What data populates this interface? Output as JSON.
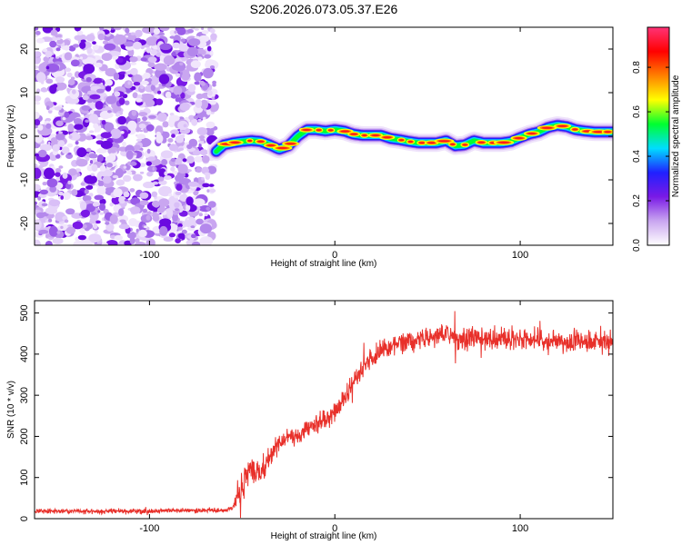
{
  "chart_data": [
    {
      "type": "heatmap",
      "title": "S206.2026.073.05.37.E26",
      "xlabel": "Height of straight line (km)",
      "ylabel": "Frequency (Hz)",
      "xlim": [
        -162,
        150
      ],
      "ylim": [
        -25,
        25
      ],
      "xticks": [
        -100,
        0,
        100
      ],
      "yticks": [
        -20,
        -10,
        0,
        10,
        20
      ],
      "noise_region_xmax": -65,
      "ridge": {
        "x": [
          -64,
          -60,
          -55,
          -50,
          -45,
          -40,
          -35,
          -30,
          -25,
          -20,
          -15,
          -10,
          -5,
          0,
          5,
          10,
          15,
          20,
          25,
          30,
          35,
          40,
          45,
          50,
          55,
          60,
          65,
          70,
          75,
          80,
          85,
          90,
          95,
          100,
          105,
          110,
          115,
          120,
          125,
          130,
          135,
          140,
          145,
          150
        ],
        "y": [
          -3.5,
          -2.0,
          -1.5,
          -1.2,
          -1.0,
          -1.2,
          -2.0,
          -3.0,
          -2.2,
          0.0,
          1.5,
          1.5,
          1.2,
          1.5,
          1.2,
          0.5,
          0.2,
          0.2,
          0.2,
          -0.5,
          -0.8,
          -1.2,
          -1.5,
          -1.5,
          -1.5,
          -1.0,
          -2.2,
          -2.0,
          -1.0,
          -1.5,
          -1.5,
          -1.5,
          -1.2,
          -0.3,
          0.5,
          1.0,
          2.0,
          2.5,
          2.2,
          1.5,
          1.2,
          1.0,
          1.0,
          1.0
        ]
      }
    },
    {
      "type": "line",
      "xlabel": "Height of straight line (km)",
      "ylabel": "SNR (10 * v/v)",
      "xlim": [
        -162,
        150
      ],
      "ylim": [
        0,
        530
      ],
      "xticks": [
        -100,
        0,
        100
      ],
      "yticks": [
        0,
        100,
        200,
        300,
        400,
        500
      ],
      "series": [
        {
          "name": "SNR",
          "color": "#e8302a",
          "x": [
            -162,
            -140,
            -120,
            -100,
            -80,
            -60,
            -55,
            -50,
            -45,
            -40,
            -35,
            -30,
            -25,
            -20,
            -15,
            -10,
            -5,
            0,
            5,
            10,
            15,
            20,
            25,
            30,
            35,
            40,
            45,
            50,
            60,
            70,
            80,
            90,
            100,
            110,
            120,
            130,
            140,
            150
          ],
          "values": [
            18,
            18,
            18,
            18,
            20,
            20,
            25,
            80,
            120,
            110,
            150,
            180,
            200,
            200,
            215,
            230,
            240,
            260,
            290,
            330,
            370,
            395,
            405,
            420,
            425,
            430,
            435,
            440,
            445,
            440,
            440,
            440,
            435,
            435,
            430,
            435,
            430,
            430
          ],
          "noise_amplitude": [
            8,
            8,
            8,
            8,
            8,
            8,
            10,
            70,
            60,
            40,
            40,
            30,
            30,
            30,
            30,
            30,
            35,
            35,
            35,
            35,
            40,
            40,
            40,
            40,
            40,
            40,
            40,
            40,
            40,
            45,
            40,
            40,
            40,
            40,
            40,
            40,
            40,
            40
          ]
        }
      ]
    }
  ],
  "colorbar": {
    "label": "Normalized spectral amplitude",
    "ticks": [
      "0.0",
      "0.2",
      "0.4",
      "0.6",
      "0.8"
    ],
    "tick_values": [
      0.0,
      0.2,
      0.4,
      0.6,
      0.8
    ],
    "range": [
      0.0,
      0.98
    ],
    "stops": [
      "#ffffff",
      "#c9a6f0",
      "#7a1ae6",
      "#2020ff",
      "#00ddff",
      "#00ff30",
      "#ffff00",
      "#ff8000",
      "#ff0000",
      "#ff3377"
    ]
  }
}
